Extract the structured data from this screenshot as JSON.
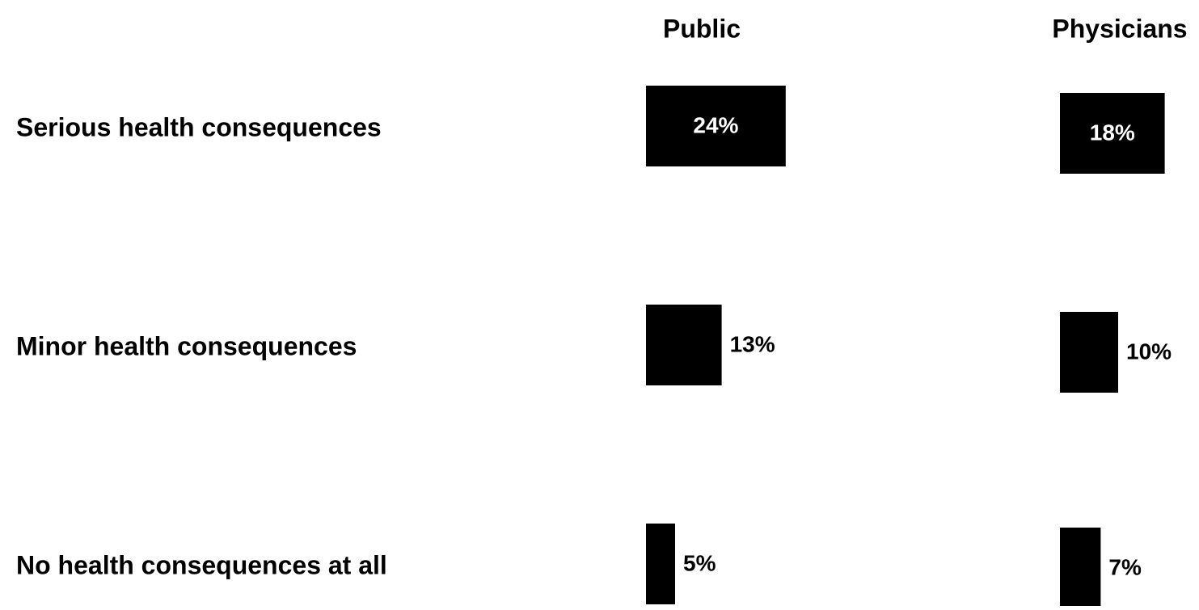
{
  "chart_data": {
    "type": "bar",
    "orientation": "horizontal",
    "categories": [
      "Serious health consequences",
      "Minor health consequences",
      "No health consequences at all"
    ],
    "series": [
      {
        "name": "Public",
        "values": [
          24,
          13,
          5
        ],
        "labels": [
          "24%",
          "13%",
          "5%"
        ]
      },
      {
        "name": "Physicians",
        "values": [
          18,
          10,
          7
        ],
        "labels": [
          "18%",
          "10%",
          "7%"
        ]
      }
    ],
    "bar_color": "#000000",
    "inside_label_color": "#ffffff",
    "outside_label_color": "#000000",
    "grid": false
  }
}
